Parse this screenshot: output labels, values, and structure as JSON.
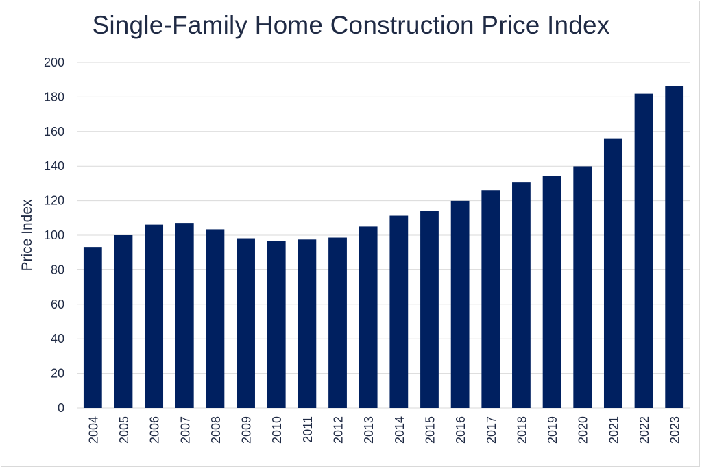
{
  "chart_data": {
    "type": "bar",
    "title": "Single-Family Home Construction Price Index",
    "xlabel": "",
    "ylabel": "Price Index",
    "categories": [
      "2004",
      "2005",
      "2006",
      "2007",
      "2008",
      "2009",
      "2010",
      "2011",
      "2012",
      "2013",
      "2014",
      "2015",
      "2016",
      "2017",
      "2018",
      "2019",
      "2020",
      "2021",
      "2022",
      "2023"
    ],
    "values": [
      93.2,
      100,
      106.1,
      107.1,
      103.4,
      98.2,
      96.5,
      97.5,
      98.6,
      105,
      111.3,
      114.1,
      119.9,
      126.1,
      130.5,
      134.4,
      139.9,
      156.1,
      181.9,
      186.4
    ],
    "ylim": [
      0,
      200
    ],
    "yticks": [
      0,
      20,
      40,
      60,
      80,
      100,
      120,
      140,
      160,
      180,
      200
    ],
    "grid": true,
    "legend": "none",
    "colors": {
      "bar": "#002060",
      "grid": "#d9d9d9",
      "text": "#1f2a44"
    }
  }
}
